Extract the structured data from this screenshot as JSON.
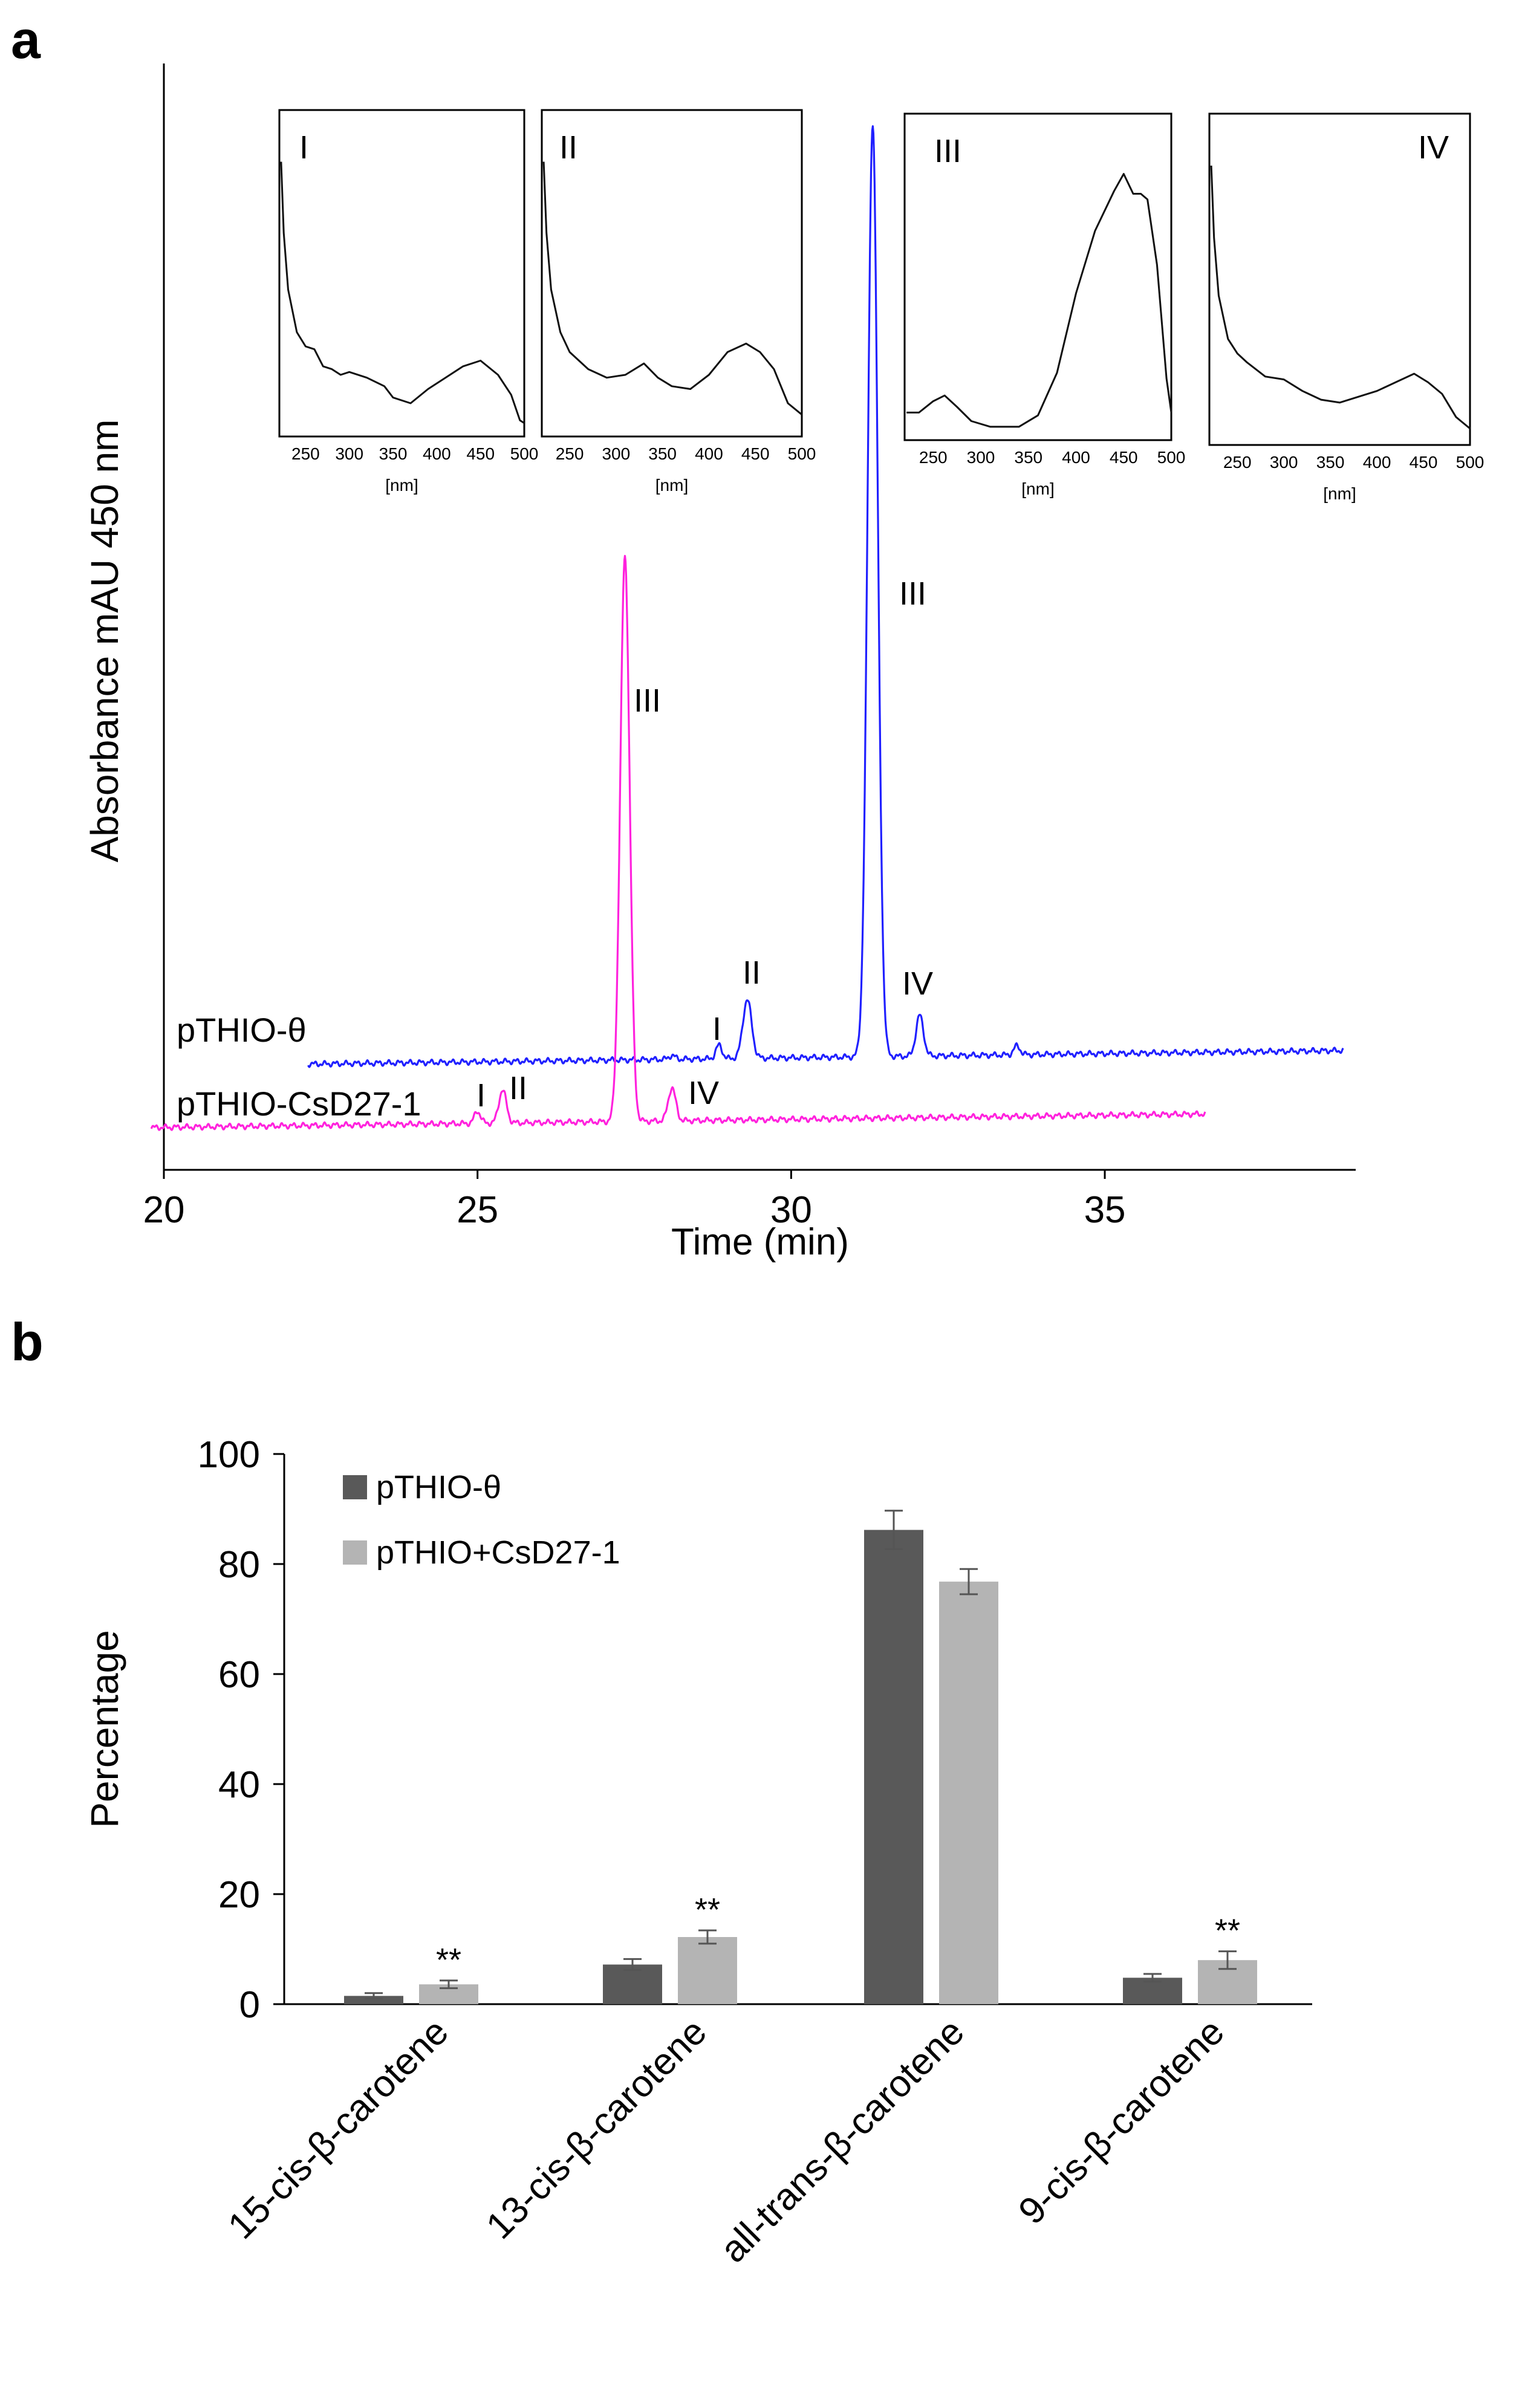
{
  "chart_data": [
    {
      "panel": "a",
      "type": "line",
      "title": "",
      "xlabel": "Time (min)",
      "ylabel": "Absorbance mAU  450 nm",
      "xlim": [
        20,
        39
      ],
      "x_ticks": [
        20,
        25,
        30,
        35
      ],
      "series": [
        {
          "name": "pTHIO-θ",
          "color": "#2020ff",
          "x_range": [
            22.3,
            38.8
          ],
          "baseline": 0.45,
          "drift": 0.9,
          "peaks": [
            {
              "label": "",
              "rt": 28.1,
              "height": 0.25,
              "width": 0.05
            },
            {
              "label": "I",
              "rt": 28.85,
              "height": 0.9,
              "width": 0.05
            },
            {
              "label": "II",
              "rt": 29.3,
              "height": 3.9,
              "width": 0.07
            },
            {
              "label": "III",
              "rt": 31.3,
              "height": 62,
              "width": 0.08
            },
            {
              "label": "IV",
              "rt": 32.05,
              "height": 2.7,
              "width": 0.06
            },
            {
              "label": "",
              "rt": 33.6,
              "height": 0.6,
              "width": 0.05
            }
          ]
        },
        {
          "name": "pTHIO-CsD27-1",
          "color": "#ff22dd",
          "x_range": [
            19.8,
            36.6
          ],
          "baseline": -3.0,
          "drift": 0.9,
          "peaks": [
            {
              "label": "I",
              "rt": 25.0,
              "height": 0.8,
              "width": 0.05
            },
            {
              "label": "II",
              "rt": 25.4,
              "height": 2.2,
              "width": 0.06
            },
            {
              "label": "III",
              "rt": 27.35,
              "height": 37.5,
              "width": 0.075
            },
            {
              "label": "IV",
              "rt": 28.1,
              "height": 2.2,
              "width": 0.06
            }
          ]
        }
      ],
      "peak_labels": {
        "series1": [
          "I",
          "II",
          "III",
          "IV"
        ],
        "series2": [
          "I",
          "II",
          "III",
          "IV"
        ]
      },
      "insets": [
        {
          "label": "I",
          "xlabel": "[nm]",
          "x_ticks": [
            250,
            300,
            350,
            400,
            450,
            500
          ],
          "xlim": [
            220,
            500
          ],
          "spectrum": [
            [
              222,
              0.95
            ],
            [
              225,
              0.7
            ],
            [
              230,
              0.5
            ],
            [
              240,
              0.35
            ],
            [
              250,
              0.3
            ],
            [
              260,
              0.29
            ],
            [
              270,
              0.23
            ],
            [
              280,
              0.22
            ],
            [
              290,
              0.2
            ],
            [
              300,
              0.21
            ],
            [
              320,
              0.19
            ],
            [
              340,
              0.16
            ],
            [
              350,
              0.12
            ],
            [
              370,
              0.1
            ],
            [
              390,
              0.15
            ],
            [
              410,
              0.19
            ],
            [
              430,
              0.23
            ],
            [
              450,
              0.25
            ],
            [
              470,
              0.2
            ],
            [
              485,
              0.13
            ],
            [
              495,
              0.04
            ],
            [
              500,
              0.03
            ]
          ]
        },
        {
          "label": "II",
          "xlabel": "[nm]",
          "x_ticks": [
            250,
            300,
            350,
            400,
            450,
            500
          ],
          "xlim": [
            220,
            500
          ],
          "spectrum": [
            [
              222,
              0.95
            ],
            [
              225,
              0.7
            ],
            [
              230,
              0.5
            ],
            [
              240,
              0.35
            ],
            [
              250,
              0.28
            ],
            [
              270,
              0.22
            ],
            [
              290,
              0.19
            ],
            [
              310,
              0.2
            ],
            [
              330,
              0.24
            ],
            [
              345,
              0.19
            ],
            [
              360,
              0.16
            ],
            [
              380,
              0.15
            ],
            [
              400,
              0.2
            ],
            [
              420,
              0.28
            ],
            [
              440,
              0.31
            ],
            [
              455,
              0.28
            ],
            [
              470,
              0.22
            ],
            [
              485,
              0.1
            ],
            [
              500,
              0.06
            ]
          ]
        },
        {
          "label": "III",
          "xlabel": "[nm]",
          "x_ticks": [
            250,
            300,
            350,
            400,
            450,
            500
          ],
          "xlim": [
            220,
            500
          ],
          "spectrum": [
            [
              222,
              0.08
            ],
            [
              235,
              0.08
            ],
            [
              250,
              0.12
            ],
            [
              262,
              0.14
            ],
            [
              275,
              0.1
            ],
            [
              290,
              0.05
            ],
            [
              310,
              0.03
            ],
            [
              340,
              0.03
            ],
            [
              360,
              0.07
            ],
            [
              380,
              0.22
            ],
            [
              400,
              0.5
            ],
            [
              420,
              0.72
            ],
            [
              440,
              0.86
            ],
            [
              450,
              0.92
            ],
            [
              460,
              0.85
            ],
            [
              468,
              0.85
            ],
            [
              475,
              0.83
            ],
            [
              485,
              0.6
            ],
            [
              495,
              0.2
            ],
            [
              500,
              0.08
            ]
          ]
        },
        {
          "label": "IV",
          "xlabel": "[nm]",
          "x_ticks": [
            250,
            300,
            350,
            400,
            450,
            500
          ],
          "xlim": [
            220,
            500
          ],
          "spectrum": [
            [
              222,
              0.95
            ],
            [
              225,
              0.7
            ],
            [
              230,
              0.5
            ],
            [
              240,
              0.35
            ],
            [
              250,
              0.3
            ],
            [
              260,
              0.27
            ],
            [
              280,
              0.22
            ],
            [
              300,
              0.21
            ],
            [
              320,
              0.17
            ],
            [
              340,
              0.14
            ],
            [
              360,
              0.13
            ],
            [
              380,
              0.15
            ],
            [
              400,
              0.17
            ],
            [
              420,
              0.2
            ],
            [
              440,
              0.23
            ],
            [
              455,
              0.2
            ],
            [
              470,
              0.16
            ],
            [
              485,
              0.08
            ],
            [
              500,
              0.04
            ]
          ]
        }
      ]
    },
    {
      "panel": "b",
      "type": "bar",
      "title": "",
      "xlabel": "",
      "ylabel": "Percentage",
      "ylim": [
        0,
        100
      ],
      "y_ticks": [
        0,
        20,
        40,
        60,
        80,
        100
      ],
      "categories": [
        "15-cis-β-carotene",
        "13-cis-β-carotene",
        "all-trans-β-carotene",
        "9-cis-β-carotene"
      ],
      "series": [
        {
          "name": "pTHIO-θ",
          "color": "#595959",
          "values": [
            1.5,
            7.2,
            86.2,
            4.8
          ],
          "errors": [
            0.5,
            1.0,
            3.5,
            0.7
          ]
        },
        {
          "name": "pTHIO+CsD27-1",
          "color": "#b4b4b4",
          "values": [
            3.6,
            12.2,
            76.8,
            8.0
          ],
          "errors": [
            0.7,
            1.2,
            2.3,
            1.6
          ]
        }
      ],
      "significance": [
        "**",
        "**",
        "",
        "**"
      ],
      "legend": "top-left"
    }
  ],
  "panel_labels": {
    "a": "a",
    "b": "b"
  }
}
